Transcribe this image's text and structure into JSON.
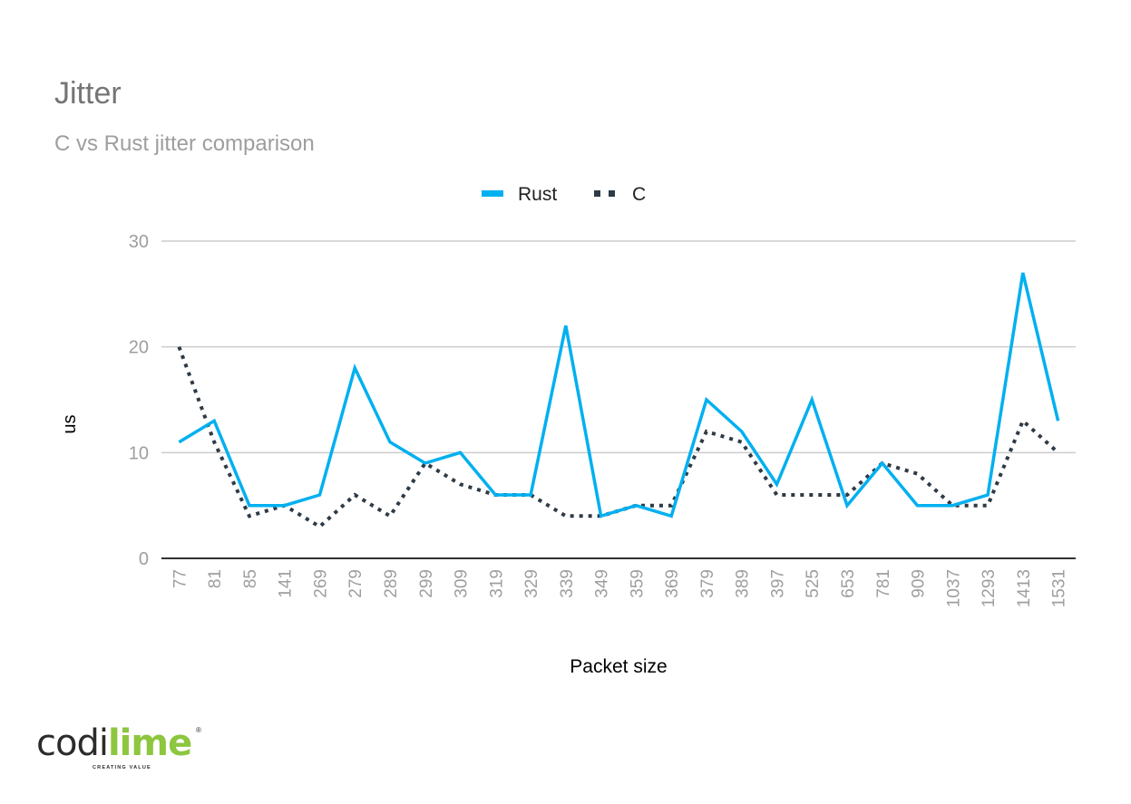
{
  "header": {
    "title": "Jitter",
    "subtitle": "C vs Rust jitter comparison"
  },
  "legend": {
    "items": [
      {
        "label": "Rust",
        "color": "#00b0f0",
        "style": "solid"
      },
      {
        "label": "C",
        "color": "#2e3a46",
        "style": "dotted"
      }
    ]
  },
  "logo": {
    "part1": "codi",
    "part2": "lime",
    "tagline": "CREATING VALUE",
    "registered": "®",
    "colors": {
      "dark": "#2b2b2b",
      "lime": "#8dc63f"
    }
  },
  "chart_data": {
    "type": "line",
    "title": "Jitter",
    "subtitle": "C vs Rust jitter comparison",
    "xlabel": "Packet size",
    "ylabel": "us",
    "ylim": [
      0,
      30
    ],
    "yticks": [
      0,
      10,
      20,
      30
    ],
    "grid": true,
    "legend_position": "top",
    "categories": [
      "77",
      "81",
      "85",
      "141",
      "269",
      "279",
      "289",
      "299",
      "309",
      "319",
      "329",
      "339",
      "349",
      "359",
      "369",
      "379",
      "389",
      "397",
      "525",
      "653",
      "781",
      "909",
      "1037",
      "1293",
      "1413",
      "1531"
    ],
    "series": [
      {
        "name": "Rust",
        "color": "#00b0f0",
        "style": "solid",
        "values": [
          11,
          13,
          5,
          5,
          6,
          18,
          11,
          9,
          10,
          6,
          6,
          22,
          4,
          5,
          4,
          15,
          12,
          7,
          15,
          5,
          9,
          5,
          5,
          6,
          27,
          13
        ]
      },
      {
        "name": "C",
        "color": "#2e3a46",
        "style": "dotted",
        "values": [
          20,
          11,
          4,
          5,
          3,
          6,
          4,
          9,
          7,
          6,
          6,
          4,
          4,
          5,
          5,
          12,
          11,
          6,
          6,
          6,
          9,
          8,
          5,
          5,
          13,
          10
        ]
      }
    ]
  }
}
